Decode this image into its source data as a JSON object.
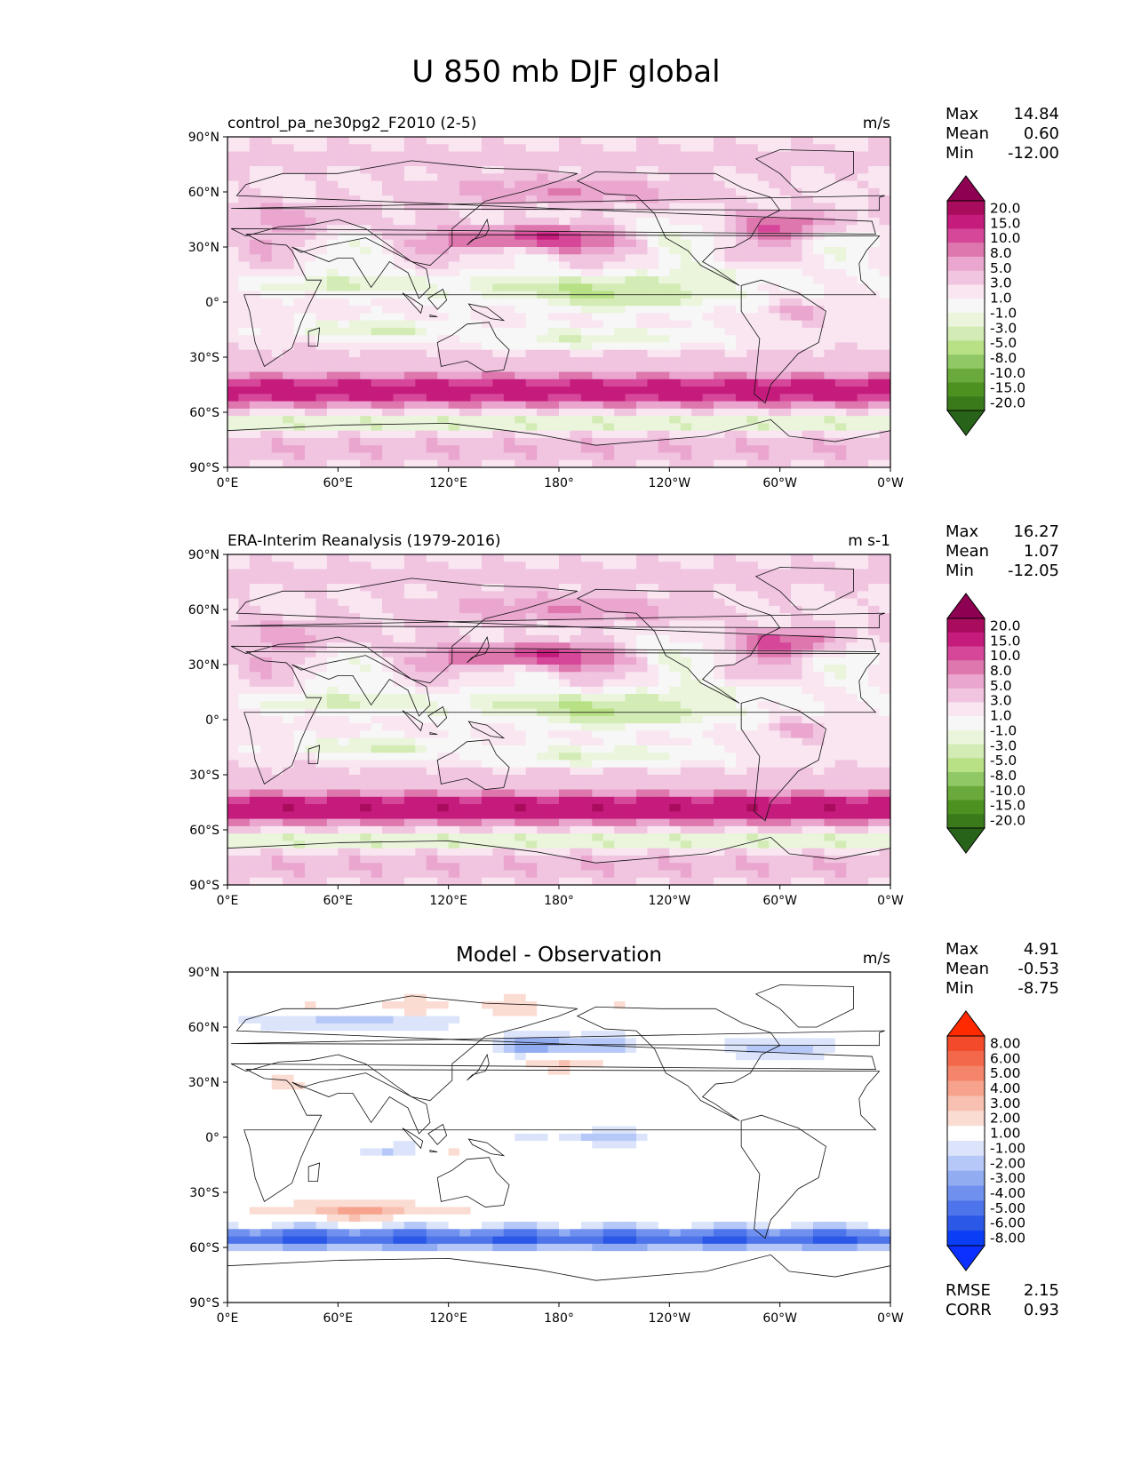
{
  "title": "U 850 mb DJF global",
  "x_ticks": [
    "0°E",
    "60°E",
    "120°E",
    "180°",
    "120°W",
    "60°W",
    "0°W"
  ],
  "y_ticks": [
    "90°N",
    "60°N",
    "30°N",
    "0°",
    "30°S",
    "60°S",
    "90°S"
  ],
  "chart_data": [
    {
      "type": "heatmap",
      "title": "control_pa_ne30pg2_F2010 (2-5)",
      "units": "m/s",
      "title_position": "left",
      "stats": [
        {
          "label": "Max",
          "value": "14.84"
        },
        {
          "label": "Mean",
          "value": "0.60"
        },
        {
          "label": "Min",
          "value": "-12.00"
        }
      ],
      "colorbar": {
        "levels": [
          "20.0",
          "15.0",
          "10.0",
          "8.0",
          "5.0",
          "3.0",
          "1.0",
          "-1.0",
          "-3.0",
          "-5.0",
          "-8.0",
          "-10.0",
          "-15.0",
          "-20.0"
        ],
        "colors": [
          "#8e0152",
          "#a90b5d",
          "#c51b7d",
          "#d6479a",
          "#de77ae",
          "#eaa6cf",
          "#f1c4e0",
          "#f9e6f1",
          "#f7f7f7",
          "#eaf5dc",
          "#d3ebb4",
          "#b8e186",
          "#91c866",
          "#6aa93b",
          "#4d9221",
          "#3a7a1a",
          "#276419"
        ]
      },
      "x": [
        "0°E",
        "60°E",
        "120°E",
        "180°",
        "120°W",
        "60°W",
        "0°W"
      ],
      "y": [
        "90°N",
        "60°N",
        "30°N",
        "0°",
        "30°S",
        "60°S",
        "90°S"
      ]
    },
    {
      "type": "heatmap",
      "title": "ERA-Interim Reanalysis (1979-2016)",
      "units": "m s-1",
      "title_position": "left",
      "stats": [
        {
          "label": "Max",
          "value": "16.27"
        },
        {
          "label": "Mean",
          "value": "1.07"
        },
        {
          "label": "Min",
          "value": "-12.05"
        }
      ],
      "colorbar": {
        "levels": [
          "20.0",
          "15.0",
          "10.0",
          "8.0",
          "5.0",
          "3.0",
          "1.0",
          "-1.0",
          "-3.0",
          "-5.0",
          "-8.0",
          "-10.0",
          "-15.0",
          "-20.0"
        ],
        "colors": [
          "#8e0152",
          "#a90b5d",
          "#c51b7d",
          "#d6479a",
          "#de77ae",
          "#eaa6cf",
          "#f1c4e0",
          "#f9e6f1",
          "#f7f7f7",
          "#eaf5dc",
          "#d3ebb4",
          "#b8e186",
          "#91c866",
          "#6aa93b",
          "#4d9221",
          "#3a7a1a",
          "#276419"
        ]
      },
      "x": [
        "0°E",
        "60°E",
        "120°E",
        "180°",
        "120°W",
        "60°W",
        "0°W"
      ],
      "y": [
        "90°N",
        "60°N",
        "30°N",
        "0°",
        "30°S",
        "60°S",
        "90°S"
      ]
    },
    {
      "type": "heatmap",
      "title": "Model - Observation",
      "units": "m/s",
      "title_position": "center",
      "stats": [
        {
          "label": "Max",
          "value": "4.91"
        },
        {
          "label": "Mean",
          "value": "-0.53"
        },
        {
          "label": "Min",
          "value": "-8.75"
        }
      ],
      "extra_stats": [
        {
          "label": "RMSE",
          "value": "2.15"
        },
        {
          "label": "CORR",
          "value": "0.93"
        }
      ],
      "colorbar": {
        "levels": [
          "8.00",
          "6.00",
          "5.00",
          "4.00",
          "3.00",
          "2.00",
          "1.00",
          "-1.00",
          "-2.00",
          "-3.00",
          "-4.00",
          "-5.00",
          "-6.00",
          "-8.00"
        ],
        "colors": [
          "#ff2a00",
          "#f24a2a",
          "#f3684a",
          "#f4856a",
          "#f6a28d",
          "#f8c0b0",
          "#fbdcd2",
          "#ffffff",
          "#dbe4fb",
          "#b5c8f7",
          "#92acf2",
          "#6f90ee",
          "#4d74ea",
          "#2b58e6",
          "#0a3df6",
          "#0b30ff"
        ]
      },
      "x": [
        "0°E",
        "60°E",
        "120°E",
        "180°",
        "120°W",
        "60°W",
        "0°W"
      ],
      "y": [
        "90°N",
        "60°N",
        "30°N",
        "0°",
        "30°S",
        "60°S",
        "90°S"
      ]
    }
  ]
}
